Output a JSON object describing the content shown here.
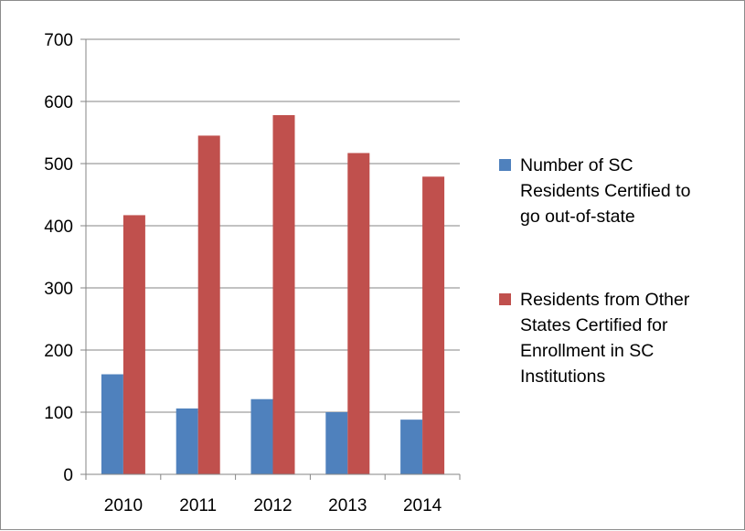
{
  "chart_data": {
    "type": "bar",
    "categories": [
      "2010",
      "2011",
      "2012",
      "2013",
      "2014"
    ],
    "series": [
      {
        "name": "Number of SC Residents Certified to go out-of-state",
        "legend_lines": [
          "Number of SC",
          "Residents Certified to",
          "go out-of-state"
        ],
        "color": "#4f81bd",
        "values": [
          161,
          106,
          121,
          100,
          88
        ]
      },
      {
        "name": "Residents from Other States Certified for Enrollment in SC Institutions",
        "legend_lines": [
          "Residents from Other",
          "States Certified for",
          "Enrollment in SC",
          "Institutions"
        ],
        "color": "#c0504d",
        "values": [
          417,
          545,
          578,
          517,
          479
        ]
      }
    ],
    "ylim": [
      0,
      700
    ],
    "yticks": [
      "0",
      "100",
      "200",
      "300",
      "400",
      "500",
      "600",
      "700"
    ],
    "grid": true,
    "legend_position": "right",
    "title": "",
    "xlabel": "",
    "ylabel": ""
  }
}
